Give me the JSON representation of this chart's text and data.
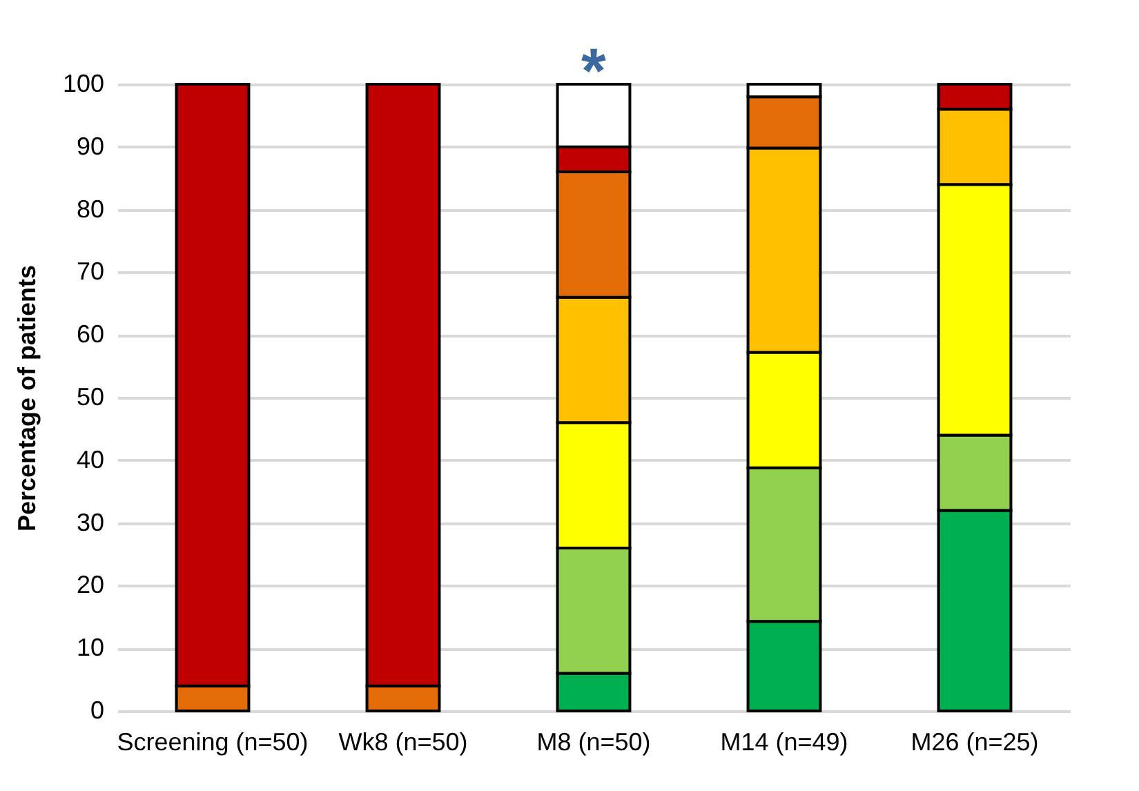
{
  "chart_data": {
    "type": "bar",
    "stacked": true,
    "ylabel": "Percentage of patients",
    "categories": [
      "Screening (n=50)",
      "Wk8 (n=50)",
      "M8 (n=50)",
      "M14 (n=49)",
      "M26 (n=25)"
    ],
    "series": [
      {
        "color": "#00b050",
        "values": [
          0,
          0,
          6,
          14.3,
          32
        ]
      },
      {
        "color": "#92d050",
        "values": [
          0,
          0,
          20,
          24.5,
          12
        ]
      },
      {
        "color": "#ffff00",
        "values": [
          0,
          0,
          20,
          18.4,
          40
        ]
      },
      {
        "color": "#ffc000",
        "values": [
          0,
          0,
          20,
          32.6,
          12
        ]
      },
      {
        "color": "#e36c09",
        "values": [
          4,
          4,
          20,
          8.2,
          0
        ]
      },
      {
        "color": "#c00000",
        "values": [
          96,
          96,
          4,
          0,
          4
        ]
      },
      {
        "color": "#ffffff",
        "values": [
          0,
          0,
          10,
          2,
          0
        ]
      }
    ],
    "ylim": [
      0,
      100
    ],
    "yticks": [
      0,
      10,
      20,
      30,
      40,
      50,
      60,
      70,
      80,
      90,
      100
    ],
    "grid": "y",
    "annotations": [
      {
        "text": "*",
        "x": "M8 (n=50)",
        "y": 100
      }
    ]
  }
}
